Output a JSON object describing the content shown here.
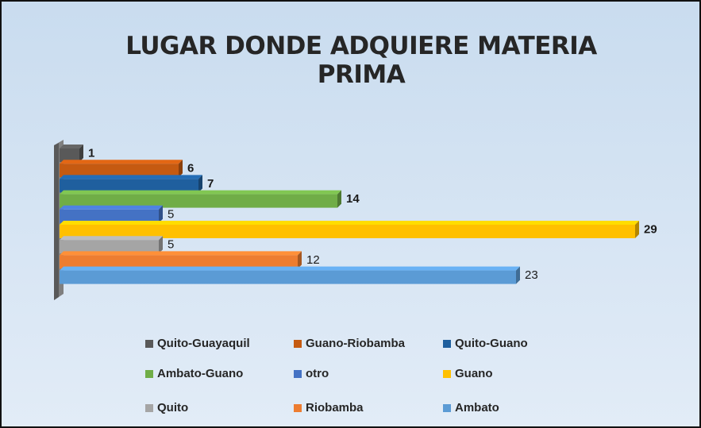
{
  "chart_data": {
    "type": "bar3d_horizontal",
    "title": "LUGAR DONDE ADQUIERE MATERIA PRIMA",
    "series": [
      {
        "name": "Quito-Guayaquil",
        "color": "#595959",
        "values": [
          1
        ],
        "label_bold": true
      },
      {
        "name": "Guano-Riobamba",
        "color": "#c55a11",
        "values": [
          6
        ],
        "label_bold": true
      },
      {
        "name": "Quito-Guano",
        "color": "#1f5f9e",
        "values": [
          7
        ],
        "label_bold": true
      },
      {
        "name": "Ambato-Guano",
        "color": "#70ad47",
        "values": [
          14
        ],
        "label_bold": true
      },
      {
        "name": "otro",
        "color": "#4472c4",
        "values": [
          5
        ],
        "label_bold": false
      },
      {
        "name": "Guano",
        "color": "#ffc000",
        "values": [
          29
        ],
        "label_bold": true
      },
      {
        "name": "Quito",
        "color": "#a5a5a5",
        "values": [
          5
        ],
        "label_bold": false
      },
      {
        "name": "Riobamba",
        "color": "#ed7d31",
        "values": [
          12
        ],
        "label_bold": false
      },
      {
        "name": "Ambato",
        "color": "#5b9bd5",
        "values": [
          23
        ],
        "label_bold": false
      }
    ],
    "legend": "bottom"
  }
}
